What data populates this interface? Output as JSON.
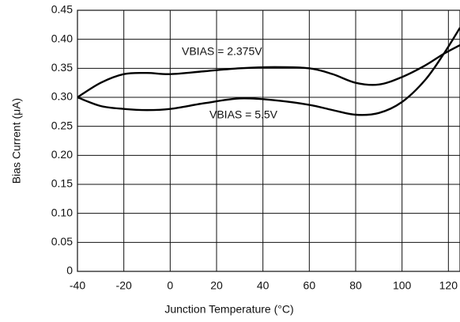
{
  "chart_data": {
    "type": "line",
    "x_label": "Junction Temperature (°C)",
    "y_label": "Bias Current (μA)",
    "xlim": [
      -40,
      125
    ],
    "ylim": [
      0,
      0.45
    ],
    "xticks": [
      -40,
      -20,
      0,
      20,
      40,
      60,
      80,
      100,
      120
    ],
    "yticks": [
      0,
      0.05,
      {
        "value": 0.1,
        "label": "0.10"
      },
      0.15,
      {
        "value": 0.2,
        "label": "0.20"
      },
      0.25,
      {
        "value": 0.3,
        "label": "0.30"
      },
      0.35,
      {
        "value": 0.4,
        "label": "0.40"
      },
      0.45
    ],
    "grid": true,
    "x": [
      -40,
      -30,
      -20,
      -10,
      0,
      15,
      30,
      45,
      60,
      70,
      80,
      90,
      100,
      110,
      118,
      125
    ],
    "series": [
      {
        "name": "VBIAS = 2.375V",
        "color": "#000000",
        "values": [
          0.3,
          0.325,
          0.34,
          0.342,
          0.34,
          0.345,
          0.35,
          0.352,
          0.35,
          0.34,
          0.325,
          0.322,
          0.335,
          0.355,
          0.375,
          0.39
        ]
      },
      {
        "name": "VBIAS = 5.5V",
        "color": "#000000",
        "values": [
          0.3,
          0.285,
          0.28,
          0.278,
          0.28,
          0.29,
          0.298,
          0.295,
          0.287,
          0.278,
          0.27,
          0.273,
          0.292,
          0.33,
          0.375,
          0.42
        ]
      }
    ]
  }
}
